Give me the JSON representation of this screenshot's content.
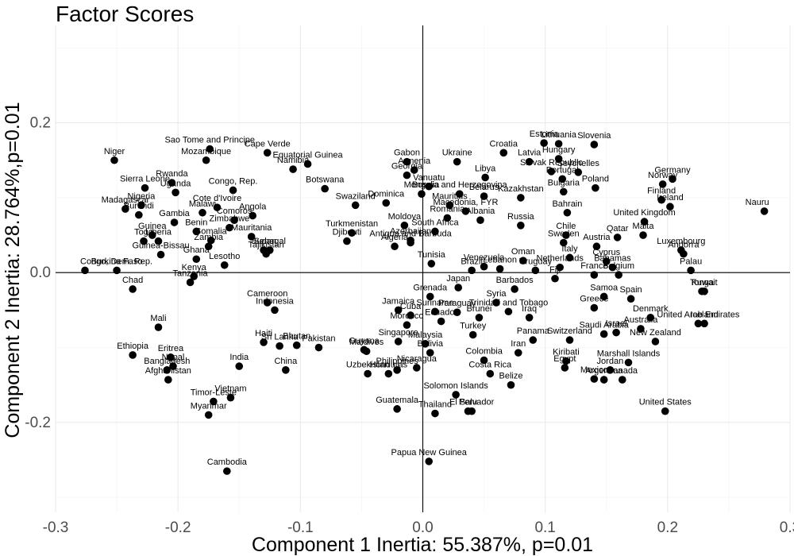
{
  "chart_data": {
    "type": "scatter",
    "title": "Factor Scores",
    "xlabel": "Component 1 Inertia: 55.387%, p=0.01",
    "ylabel": "Component 2 Inertia: 28.764%,p=0.01",
    "xlim": [
      -0.3,
      0.3
    ],
    "ylim": [
      -0.32,
      0.33
    ],
    "x_ticks": [
      -0.3,
      -0.2,
      -0.1,
      0.0,
      0.1,
      0.2,
      0.3
    ],
    "x_tick_labels": [
      "-0.3",
      "-0.2",
      "-0.1",
      "0.0",
      "0.1",
      "0.2",
      "0.3"
    ],
    "y_ticks": [
      -0.2,
      0.0,
      0.2
    ],
    "y_tick_labels": [
      "-0.2",
      "0.0",
      "0.2"
    ],
    "grid": true,
    "reference_lines": {
      "x": 0,
      "y": 0
    },
    "point_color": "#000000",
    "points": [
      {
        "label": "Niger",
        "x": -0.252,
        "y": 0.15
      },
      {
        "label": "Sao Tome and Principe",
        "x": -0.174,
        "y": 0.165
      },
      {
        "label": "Mozambique",
        "x": -0.177,
        "y": 0.15
      },
      {
        "label": "Cape Verde",
        "x": -0.127,
        "y": 0.16
      },
      {
        "label": "Equatorial Guinea",
        "x": -0.094,
        "y": 0.145
      },
      {
        "label": "Namibia",
        "x": -0.106,
        "y": 0.138
      },
      {
        "label": "Gabon",
        "x": -0.013,
        "y": 0.148
      },
      {
        "label": "Ukraine",
        "x": 0.028,
        "y": 0.148
      },
      {
        "label": "Croatia",
        "x": 0.066,
        "y": 0.16
      },
      {
        "label": "Estonia",
        "x": 0.099,
        "y": 0.173
      },
      {
        "label": "Lithuania",
        "x": 0.111,
        "y": 0.172
      },
      {
        "label": "Slovenia",
        "x": 0.14,
        "y": 0.171
      },
      {
        "label": "Latvia",
        "x": 0.087,
        "y": 0.148
      },
      {
        "label": "Hungary",
        "x": 0.111,
        "y": 0.152
      },
      {
        "label": "Seychelles",
        "x": 0.127,
        "y": 0.134
      },
      {
        "label": "Rwanda",
        "x": -0.205,
        "y": 0.12
      },
      {
        "label": "Sierra Leone",
        "x": -0.227,
        "y": 0.113
      },
      {
        "label": "Congo, Rep.",
        "x": -0.155,
        "y": 0.11
      },
      {
        "label": "Botswana",
        "x": -0.08,
        "y": 0.112
      },
      {
        "label": "Georgia",
        "x": -0.013,
        "y": 0.13
      },
      {
        "label": "Armenia",
        "x": -0.007,
        "y": 0.137
      },
      {
        "label": "Libya",
        "x": 0.051,
        "y": 0.127
      },
      {
        "label": "Vanuatu",
        "x": 0.005,
        "y": 0.115
      },
      {
        "label": "Bosnia and Herzegovina",
        "x": 0.03,
        "y": 0.105
      },
      {
        "label": "Slovak Republic",
        "x": 0.105,
        "y": 0.135
      },
      {
        "label": "Portugal",
        "x": 0.114,
        "y": 0.125
      },
      {
        "label": "Germany",
        "x": 0.204,
        "y": 0.125
      },
      {
        "label": "Norway",
        "x": 0.196,
        "y": 0.118
      },
      {
        "label": "Nigeria",
        "x": -0.23,
        "y": 0.09
      },
      {
        "label": "Uganda",
        "x": -0.202,
        "y": 0.107
      },
      {
        "label": "Malawi",
        "x": -0.18,
        "y": 0.08
      },
      {
        "label": "Cote d'Ivoire",
        "x": -0.168,
        "y": 0.087
      },
      {
        "label": "Angola",
        "x": -0.139,
        "y": 0.076
      },
      {
        "label": "Burundi",
        "x": -0.232,
        "y": 0.077
      },
      {
        "label": "Madagascar",
        "x": -0.243,
        "y": 0.085
      },
      {
        "label": "Gambia",
        "x": -0.203,
        "y": 0.067
      },
      {
        "label": "Comoros",
        "x": -0.154,
        "y": 0.07
      },
      {
        "label": "Mongolia",
        "x": -0.001,
        "y": 0.105
      },
      {
        "label": "Swaziland",
        "x": -0.055,
        "y": 0.09
      },
      {
        "label": "Dominica",
        "x": -0.03,
        "y": 0.093
      },
      {
        "label": "Mauritius",
        "x": 0.022,
        "y": 0.09
      },
      {
        "label": "Macedonia, FYR",
        "x": 0.035,
        "y": 0.082
      },
      {
        "label": "Belarus",
        "x": 0.05,
        "y": 0.102
      },
      {
        "label": "Kazakhstan",
        "x": 0.08,
        "y": 0.1
      },
      {
        "label": "Bulgaria",
        "x": 0.115,
        "y": 0.108
      },
      {
        "label": "Poland",
        "x": 0.141,
        "y": 0.113
      },
      {
        "label": "Finland",
        "x": 0.195,
        "y": 0.097
      },
      {
        "label": "Ireland",
        "x": 0.202,
        "y": 0.088
      },
      {
        "label": "Nauru",
        "x": 0.279,
        "y": 0.082
      },
      {
        "label": "Guinea",
        "x": -0.221,
        "y": 0.05
      },
      {
        "label": "Togo",
        "x": -0.228,
        "y": 0.042
      },
      {
        "label": "Liberia",
        "x": -0.216,
        "y": 0.042
      },
      {
        "label": "Zimbabwe",
        "x": -0.158,
        "y": 0.06
      },
      {
        "label": "Benin",
        "x": -0.185,
        "y": 0.055
      },
      {
        "label": "Somalia",
        "x": -0.173,
        "y": 0.043
      },
      {
        "label": "Zambia",
        "x": -0.175,
        "y": 0.035
      },
      {
        "label": "Mauritania",
        "x": -0.14,
        "y": 0.048
      },
      {
        "label": "Senegal",
        "x": -0.125,
        "y": 0.03
      },
      {
        "label": "Turkmenistan",
        "x": -0.058,
        "y": 0.053
      },
      {
        "label": "Djibouti",
        "x": -0.062,
        "y": 0.042
      },
      {
        "label": "Moldova",
        "x": -0.015,
        "y": 0.063
      },
      {
        "label": "Azerbaijan",
        "x": -0.01,
        "y": 0.043
      },
      {
        "label": "Romania",
        "x": 0.02,
        "y": 0.073
      },
      {
        "label": "South Africa",
        "x": 0.01,
        "y": 0.055
      },
      {
        "label": "Albania",
        "x": 0.047,
        "y": 0.07
      },
      {
        "label": "Russia",
        "x": 0.08,
        "y": 0.063
      },
      {
        "label": "Bahrain",
        "x": 0.118,
        "y": 0.08
      },
      {
        "label": "Chile",
        "x": 0.117,
        "y": 0.05
      },
      {
        "label": "Austria",
        "x": 0.142,
        "y": 0.035
      },
      {
        "label": "Qatar",
        "x": 0.159,
        "y": 0.047
      },
      {
        "label": "Malta",
        "x": 0.18,
        "y": 0.05
      },
      {
        "label": "United Kingdom",
        "x": 0.181,
        "y": 0.068
      },
      {
        "label": "Luxembourg",
        "x": 0.211,
        "y": 0.03
      },
      {
        "label": "Andorra",
        "x": 0.213,
        "y": 0.025
      },
      {
        "label": "Congo, Dem. Rep.",
        "x": -0.276,
        "y": 0.003
      },
      {
        "label": "Burkina Faso",
        "x": -0.25,
        "y": 0.003
      },
      {
        "label": "Guinea-Bissau",
        "x": -0.214,
        "y": 0.024
      },
      {
        "label": "Ghana",
        "x": -0.185,
        "y": 0.018
      },
      {
        "label": "Lesotho",
        "x": -0.162,
        "y": 0.01
      },
      {
        "label": "Sudan",
        "x": -0.13,
        "y": 0.03
      },
      {
        "label": "Tajikistan",
        "x": -0.128,
        "y": 0.025
      },
      {
        "label": "Algeria",
        "x": -0.023,
        "y": 0.035
      },
      {
        "label": "Antigua and Barbuda",
        "x": -0.01,
        "y": 0.04
      },
      {
        "label": "Tunisia",
        "x": 0.007,
        "y": 0.012
      },
      {
        "label": "Venezuela",
        "x": 0.05,
        "y": 0.008
      },
      {
        "label": "Brazil",
        "x": 0.04,
        "y": 0.003
      },
      {
        "label": "Lebanon",
        "x": 0.063,
        "y": 0.005
      },
      {
        "label": "Oman",
        "x": 0.082,
        "y": 0.016
      },
      {
        "label": "Sweden",
        "x": 0.115,
        "y": 0.04
      },
      {
        "label": "Italy",
        "x": 0.12,
        "y": 0.02
      },
      {
        "label": "Netherlands",
        "x": 0.112,
        "y": 0.007
      },
      {
        "label": "Uruguay",
        "x": 0.092,
        "y": 0.003
      },
      {
        "label": "Cyprus",
        "x": 0.15,
        "y": 0.015
      },
      {
        "label": "Bahamas",
        "x": 0.155,
        "y": 0.007
      },
      {
        "label": "Palau",
        "x": 0.219,
        "y": 0.003
      },
      {
        "label": "Chad",
        "x": -0.237,
        "y": -0.022
      },
      {
        "label": "Tanzania",
        "x": -0.19,
        "y": -0.013
      },
      {
        "label": "Kenya",
        "x": -0.187,
        "y": -0.005
      },
      {
        "label": "Barbados",
        "x": 0.075,
        "y": -0.022
      },
      {
        "label": "Fiji",
        "x": 0.108,
        "y": -0.008
      },
      {
        "label": "France",
        "x": 0.14,
        "y": -0.003
      },
      {
        "label": "Belgium",
        "x": 0.16,
        "y": -0.003
      },
      {
        "label": "Tonga",
        "x": 0.228,
        "y": -0.025
      },
      {
        "label": "Cameroon",
        "x": -0.127,
        "y": -0.04
      },
      {
        "label": "Indonesia",
        "x": -0.121,
        "y": -0.05
      },
      {
        "label": "Grenada",
        "x": 0.006,
        "y": -0.032
      },
      {
        "label": "Japan",
        "x": 0.029,
        "y": -0.02
      },
      {
        "label": "Syria",
        "x": 0.06,
        "y": -0.04
      },
      {
        "label": "Samoa",
        "x": 0.148,
        "y": -0.032
      },
      {
        "label": "Kuwait",
        "x": 0.23,
        "y": -0.025
      },
      {
        "label": "Jamaica",
        "x": -0.02,
        "y": -0.05
      },
      {
        "label": "Cuba",
        "x": -0.01,
        "y": -0.057
      },
      {
        "label": "Suriname",
        "x": 0.01,
        "y": -0.052
      },
      {
        "label": "Paraguay",
        "x": 0.028,
        "y": -0.053
      },
      {
        "label": "Trinidad and Tobago",
        "x": 0.07,
        "y": -0.052
      },
      {
        "label": "Greece",
        "x": 0.14,
        "y": -0.047
      },
      {
        "label": "Spain",
        "x": 0.17,
        "y": -0.035
      },
      {
        "label": "Denmark",
        "x": 0.186,
        "y": -0.06
      },
      {
        "label": "United Arab Emirates",
        "x": 0.225,
        "y": -0.068
      },
      {
        "label": "Mali",
        "x": -0.216,
        "y": -0.073
      },
      {
        "label": "Sri Lanka",
        "x": -0.117,
        "y": -0.098
      },
      {
        "label": "Haiti",
        "x": -0.13,
        "y": -0.093
      },
      {
        "label": "Bhutan",
        "x": -0.103,
        "y": -0.097
      },
      {
        "label": "Pakistan",
        "x": -0.085,
        "y": -0.1
      },
      {
        "label": "Morocco",
        "x": -0.013,
        "y": -0.07
      },
      {
        "label": "Ecuador",
        "x": 0.015,
        "y": -0.065
      },
      {
        "label": "Brunei",
        "x": 0.046,
        "y": -0.06
      },
      {
        "label": "Iraq",
        "x": 0.087,
        "y": -0.06
      },
      {
        "label": "Saudi Arabia",
        "x": 0.148,
        "y": -0.082
      },
      {
        "label": "Australia",
        "x": 0.178,
        "y": -0.075
      },
      {
        "label": "Iceland",
        "x": 0.23,
        "y": -0.068
      },
      {
        "label": "Turkey",
        "x": 0.041,
        "y": -0.083
      },
      {
        "label": "Singapore",
        "x": -0.02,
        "y": -0.092
      },
      {
        "label": "Malaysia",
        "x": 0.002,
        "y": -0.095
      },
      {
        "label": "Maldives",
        "x": -0.046,
        "y": -0.105
      },
      {
        "label": "Guyana",
        "x": -0.048,
        "y": -0.103
      },
      {
        "label": "Panama",
        "x": 0.09,
        "y": -0.09
      },
      {
        "label": "Switzerland",
        "x": 0.12,
        "y": -0.09
      },
      {
        "label": "Israel",
        "x": 0.158,
        "y": -0.08
      },
      {
        "label": "New Zealand",
        "x": 0.19,
        "y": -0.092
      },
      {
        "label": "Eritrea",
        "x": -0.206,
        "y": -0.113
      },
      {
        "label": "Ethiopia",
        "x": -0.237,
        "y": -0.11
      },
      {
        "label": "Nepal",
        "x": -0.204,
        "y": -0.125
      },
      {
        "label": "India",
        "x": -0.15,
        "y": -0.125
      },
      {
        "label": "China",
        "x": -0.112,
        "y": -0.13
      },
      {
        "label": "Bangladesh",
        "x": -0.209,
        "y": -0.13
      },
      {
        "label": "Uzbekistan",
        "x": -0.045,
        "y": -0.135
      },
      {
        "label": "Bolivia",
        "x": 0.006,
        "y": -0.107
      },
      {
        "label": "Colombia",
        "x": 0.05,
        "y": -0.117
      },
      {
        "label": "Iran",
        "x": 0.078,
        "y": -0.107
      },
      {
        "label": "Kiribati",
        "x": 0.117,
        "y": -0.118
      },
      {
        "label": "Egypt",
        "x": 0.116,
        "y": -0.127
      },
      {
        "label": "Marshall Islands",
        "x": 0.168,
        "y": -0.12
      },
      {
        "label": "Afghanistan",
        "x": -0.208,
        "y": -0.143
      },
      {
        "label": "Philippines",
        "x": -0.021,
        "y": -0.13
      },
      {
        "label": "Nicaragua",
        "x": -0.005,
        "y": -0.127
      },
      {
        "label": "Honduras",
        "x": -0.028,
        "y": -0.135
      },
      {
        "label": "Costa Rica",
        "x": 0.055,
        "y": -0.135
      },
      {
        "label": "Jordan",
        "x": 0.153,
        "y": -0.13
      },
      {
        "label": "Mexico",
        "x": 0.14,
        "y": -0.142
      },
      {
        "label": "Canada",
        "x": 0.163,
        "y": -0.143
      },
      {
        "label": "Belize",
        "x": 0.072,
        "y": -0.15
      },
      {
        "label": "Solomon Islands",
        "x": 0.027,
        "y": -0.163
      },
      {
        "label": "Argentina",
        "x": 0.148,
        "y": -0.143
      },
      {
        "label": "Vietnam",
        "x": -0.157,
        "y": -0.167
      },
      {
        "label": "Timor-Leste",
        "x": -0.171,
        "y": -0.172
      },
      {
        "label": "Myanmar",
        "x": -0.175,
        "y": -0.19
      },
      {
        "label": "Guatemala",
        "x": -0.021,
        "y": -0.182
      },
      {
        "label": "Peru",
        "x": 0.037,
        "y": -0.185
      },
      {
        "label": "El Salvador",
        "x": 0.04,
        "y": -0.185
      },
      {
        "label": "Thailand",
        "x": 0.01,
        "y": -0.188
      },
      {
        "label": "United States",
        "x": 0.198,
        "y": -0.185
      },
      {
        "label": "Papua New Guinea",
        "x": 0.005,
        "y": -0.252
      },
      {
        "label": "Cambodia",
        "x": -0.16,
        "y": -0.265
      }
    ]
  }
}
